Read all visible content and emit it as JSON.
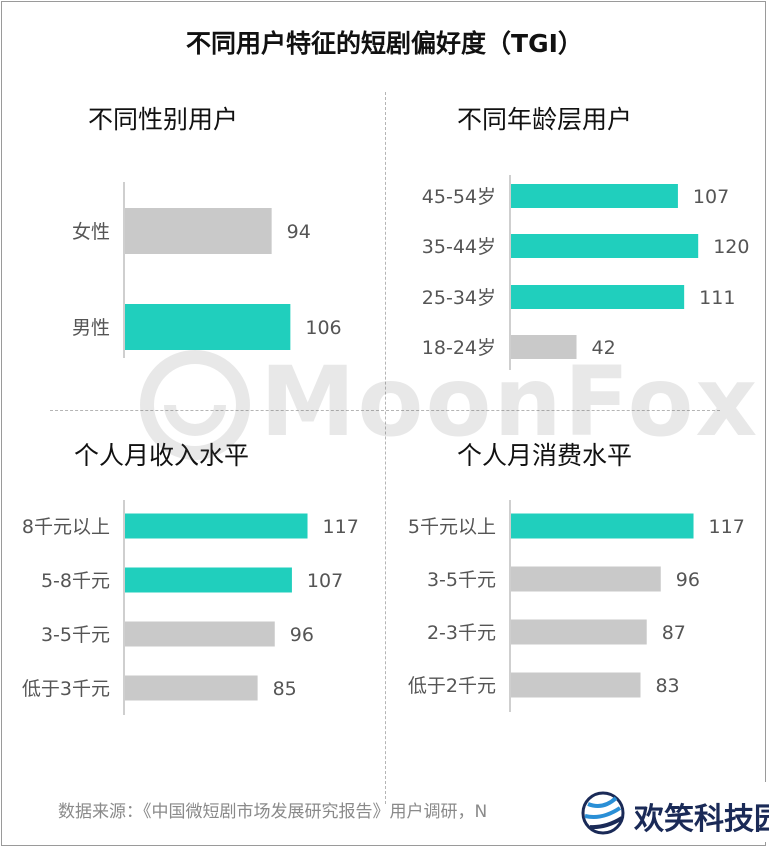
{
  "title": "不同用户特征的短剧偏好度（TGI）",
  "colors": {
    "highlight": "#20cfbd",
    "normal": "#c9c9c9",
    "axis": "#bfbfbf",
    "label": "#555555"
  },
  "panels": [
    {
      "title": "不同性别用户"
    },
    {
      "title": "不同年龄层用户"
    },
    {
      "title": "个人月收入水平"
    },
    {
      "title": "个人月消费水平"
    }
  ],
  "chart_data": [
    {
      "type": "bar",
      "orientation": "horizontal",
      "title": "不同性别用户",
      "categories": [
        "女性",
        "男性"
      ],
      "values": [
        94,
        106
      ],
      "highlight": [
        false,
        true
      ]
    },
    {
      "type": "bar",
      "orientation": "horizontal",
      "title": "不同年龄层用户",
      "categories": [
        "45-54岁",
        "35-44岁",
        "25-34岁",
        "18-24岁"
      ],
      "values": [
        107,
        120,
        111,
        42
      ],
      "highlight": [
        true,
        true,
        true,
        false
      ]
    },
    {
      "type": "bar",
      "orientation": "horizontal",
      "title": "个人月收入水平",
      "categories": [
        "8千元以上",
        "5-8千元",
        "3-5千元",
        "低于3千元"
      ],
      "values": [
        117,
        107,
        96,
        85
      ],
      "highlight": [
        true,
        true,
        false,
        false
      ]
    },
    {
      "type": "bar",
      "orientation": "horizontal",
      "title": "个人月消费水平",
      "categories": [
        "5千元以上",
        "3-5千元",
        "2-3千元",
        "低于2千元"
      ],
      "values": [
        117,
        96,
        87,
        83
      ],
      "highlight": [
        true,
        false,
        false,
        false
      ]
    }
  ],
  "watermark": "MoonFox",
  "source": "数据来源：《中国微短剧市场发展研究报告》用户调研，N",
  "brand": "欢笑科技园"
}
